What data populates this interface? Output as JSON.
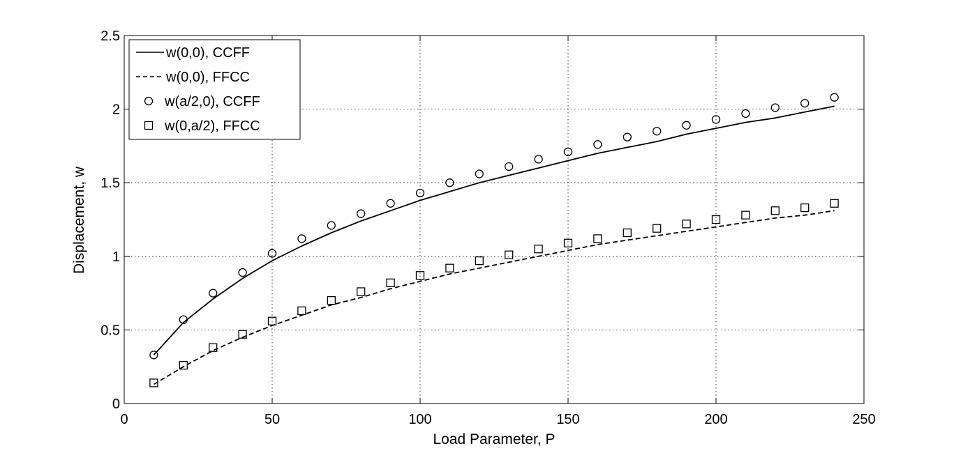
{
  "chart_data": {
    "type": "line",
    "title": "",
    "xlabel": "Load Parameter, P",
    "ylabel": "Displacement, w",
    "xlim": [
      0,
      250
    ],
    "ylim": [
      0,
      2.5
    ],
    "xticks": [
      0,
      50,
      100,
      150,
      200,
      250
    ],
    "yticks": [
      0,
      0.5,
      1,
      1.5,
      2,
      2.5
    ],
    "xtick_labels": [
      "0",
      "50",
      "100",
      "150",
      "200",
      "250"
    ],
    "ytick_labels": [
      "0",
      "0.5",
      "1",
      "1.5",
      "2",
      "2.5"
    ],
    "grid": true,
    "legend_position": "top-left",
    "series": [
      {
        "name": "w(0,0), CCFF",
        "style": "solid-line",
        "x": [
          10,
          20,
          30,
          40,
          50,
          60,
          70,
          80,
          90,
          100,
          110,
          120,
          130,
          140,
          150,
          160,
          170,
          180,
          190,
          200,
          210,
          220,
          230,
          240
        ],
        "y": [
          0.33,
          0.55,
          0.71,
          0.85,
          0.97,
          1.07,
          1.16,
          1.24,
          1.31,
          1.38,
          1.44,
          1.5,
          1.55,
          1.6,
          1.65,
          1.7,
          1.74,
          1.78,
          1.83,
          1.87,
          1.91,
          1.94,
          1.98,
          2.02
        ]
      },
      {
        "name": "w(0,0), FFCC",
        "style": "dashed-line",
        "x": [
          10,
          20,
          30,
          40,
          50,
          60,
          70,
          80,
          90,
          100,
          110,
          120,
          130,
          140,
          150,
          160,
          170,
          180,
          190,
          200,
          210,
          220,
          230,
          240
        ],
        "y": [
          0.13,
          0.25,
          0.36,
          0.45,
          0.53,
          0.6,
          0.67,
          0.72,
          0.78,
          0.83,
          0.88,
          0.92,
          0.96,
          1.0,
          1.04,
          1.08,
          1.11,
          1.14,
          1.17,
          1.2,
          1.23,
          1.26,
          1.28,
          1.31
        ]
      },
      {
        "name": "w(a/2,0), CCFF",
        "style": "circle-marker",
        "x": [
          10,
          20,
          30,
          40,
          50,
          60,
          70,
          80,
          90,
          100,
          110,
          120,
          130,
          140,
          150,
          160,
          170,
          180,
          190,
          200,
          210,
          220,
          230,
          240
        ],
        "y": [
          0.33,
          0.57,
          0.75,
          0.89,
          1.02,
          1.12,
          1.21,
          1.29,
          1.36,
          1.43,
          1.5,
          1.56,
          1.61,
          1.66,
          1.71,
          1.76,
          1.81,
          1.85,
          1.89,
          1.93,
          1.97,
          2.01,
          2.04,
          2.08
        ]
      },
      {
        "name": "w(0,a/2), FFCC",
        "style": "square-marker",
        "x": [
          10,
          20,
          30,
          40,
          50,
          60,
          70,
          80,
          90,
          100,
          110,
          120,
          130,
          140,
          150,
          160,
          170,
          180,
          190,
          200,
          210,
          220,
          230,
          240
        ],
        "y": [
          0.14,
          0.26,
          0.38,
          0.47,
          0.56,
          0.63,
          0.7,
          0.76,
          0.82,
          0.87,
          0.92,
          0.97,
          1.01,
          1.05,
          1.09,
          1.12,
          1.16,
          1.19,
          1.22,
          1.25,
          1.28,
          1.31,
          1.33,
          1.36
        ]
      }
    ]
  }
}
